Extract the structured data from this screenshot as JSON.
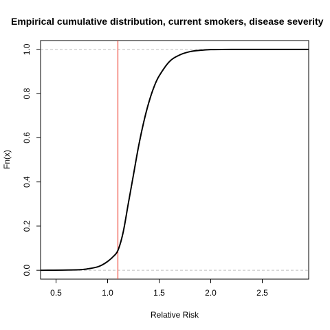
{
  "chart_data": {
    "type": "line",
    "title": "Empirical cumulative distribution, current smokers, disease severity",
    "xlabel": "Relative Risk",
    "ylabel": "Fn(x)",
    "xlim": [
      0.35,
      2.95
    ],
    "ylim": [
      -0.04,
      1.04
    ],
    "x_ticks": [
      0.5,
      1.0,
      1.5,
      2.0,
      2.5
    ],
    "x_tick_labels": [
      "0.5",
      "1.0",
      "1.5",
      "2.0",
      "2.5"
    ],
    "y_ticks": [
      0.0,
      0.2,
      0.4,
      0.6,
      0.8,
      1.0
    ],
    "y_tick_labels": [
      "0.0",
      "0.2",
      "0.4",
      "0.6",
      "0.8",
      "1.0"
    ],
    "horizontal_reference_lines": [
      0,
      1
    ],
    "vertical_reference_line": 1.1,
    "vertical_line_color": "#ee4b3c",
    "series": [
      {
        "x": [
          0.35,
          0.7,
          0.8,
          0.9,
          0.95,
          1.0,
          1.05,
          1.1,
          1.15,
          1.2,
          1.25,
          1.3,
          1.35,
          1.4,
          1.45,
          1.5,
          1.6,
          1.7,
          1.8,
          1.9,
          2.0,
          2.2,
          2.5,
          2.95
        ],
        "y": [
          0.0,
          0.002,
          0.006,
          0.015,
          0.025,
          0.04,
          0.06,
          0.09,
          0.17,
          0.3,
          0.43,
          0.56,
          0.67,
          0.76,
          0.83,
          0.88,
          0.945,
          0.975,
          0.99,
          0.996,
          0.999,
          1.0,
          1.0,
          1.0
        ]
      }
    ]
  }
}
